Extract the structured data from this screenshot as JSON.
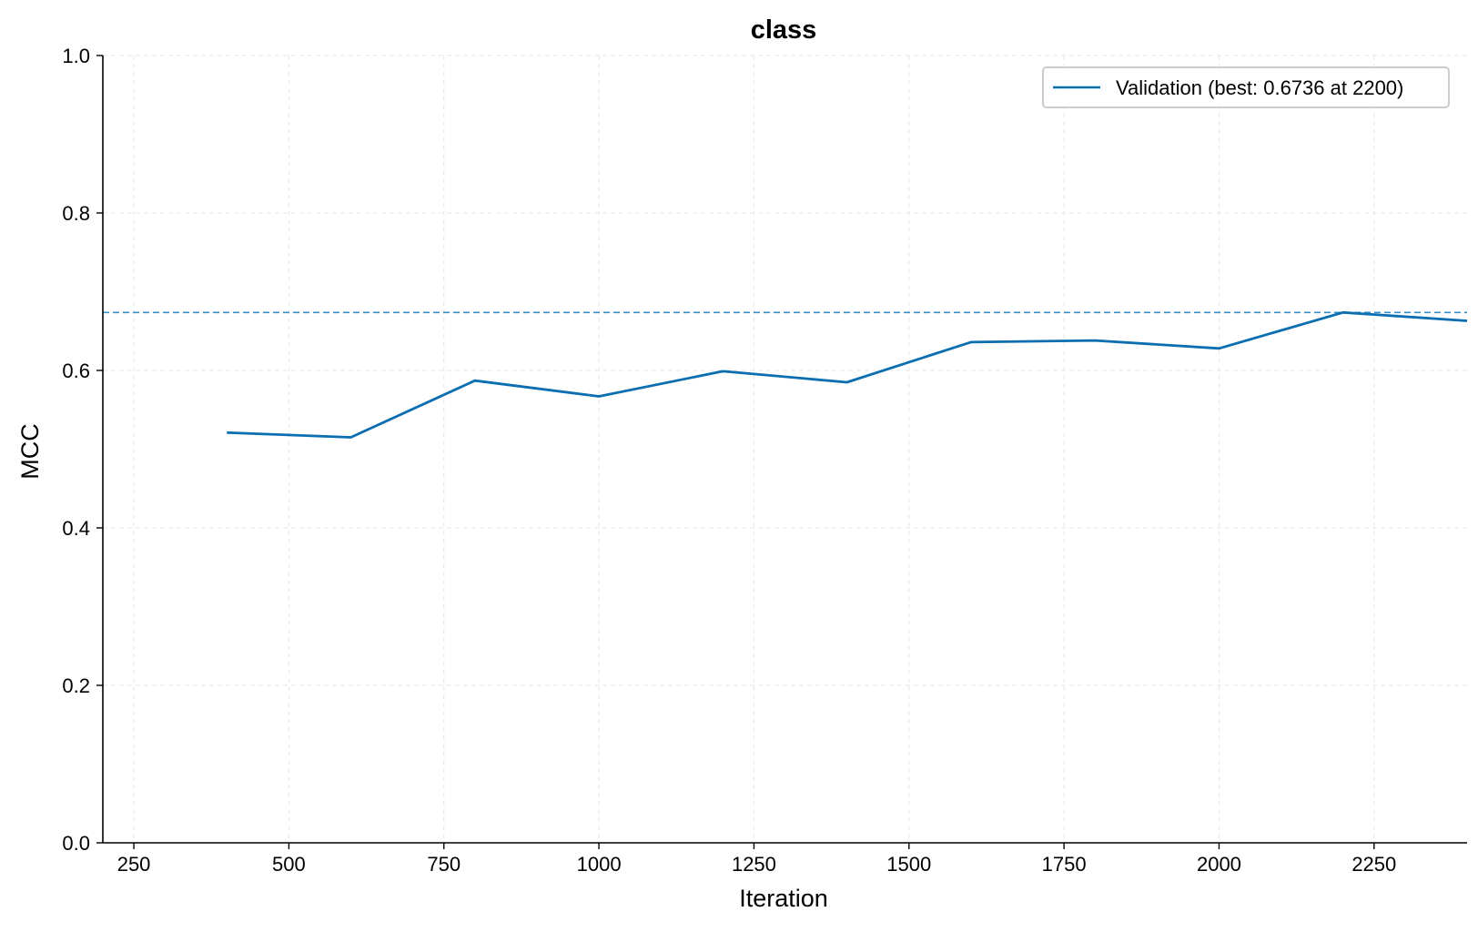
{
  "chart_data": {
    "type": "line",
    "title": "class",
    "xlabel": "Iteration",
    "ylabel": "MCC",
    "xlim": [
      200,
      2400
    ],
    "ylim": [
      0.0,
      1.0
    ],
    "xticks": [
      250,
      500,
      750,
      1000,
      1250,
      1500,
      1750,
      2000,
      2250
    ],
    "xtick_labels": [
      "250",
      "500",
      "750",
      "1000",
      "1250",
      "1500",
      "1750",
      "2000",
      "2250"
    ],
    "yticks": [
      0.0,
      0.2,
      0.4,
      0.6,
      0.8,
      1.0
    ],
    "ytick_labels": [
      "0.0",
      "0.2",
      "0.4",
      "0.6",
      "0.8",
      "1.0"
    ],
    "grid": true,
    "legend_position": "top-right",
    "series": [
      {
        "name": "Validation (best: 0.6736 at 2200)",
        "color": "#0a6eb0",
        "x": [
          400,
          600,
          800,
          1000,
          1200,
          1400,
          1600,
          1800,
          2000,
          2200,
          2400
        ],
        "y": [
          0.521,
          0.515,
          0.587,
          0.567,
          0.599,
          0.585,
          0.636,
          0.638,
          0.628,
          0.6736,
          0.663
        ]
      }
    ],
    "reference_lines": [
      {
        "orientation": "horizontal",
        "y": 0.6736,
        "style": "dashed",
        "color": "#3a8fc4"
      }
    ]
  }
}
